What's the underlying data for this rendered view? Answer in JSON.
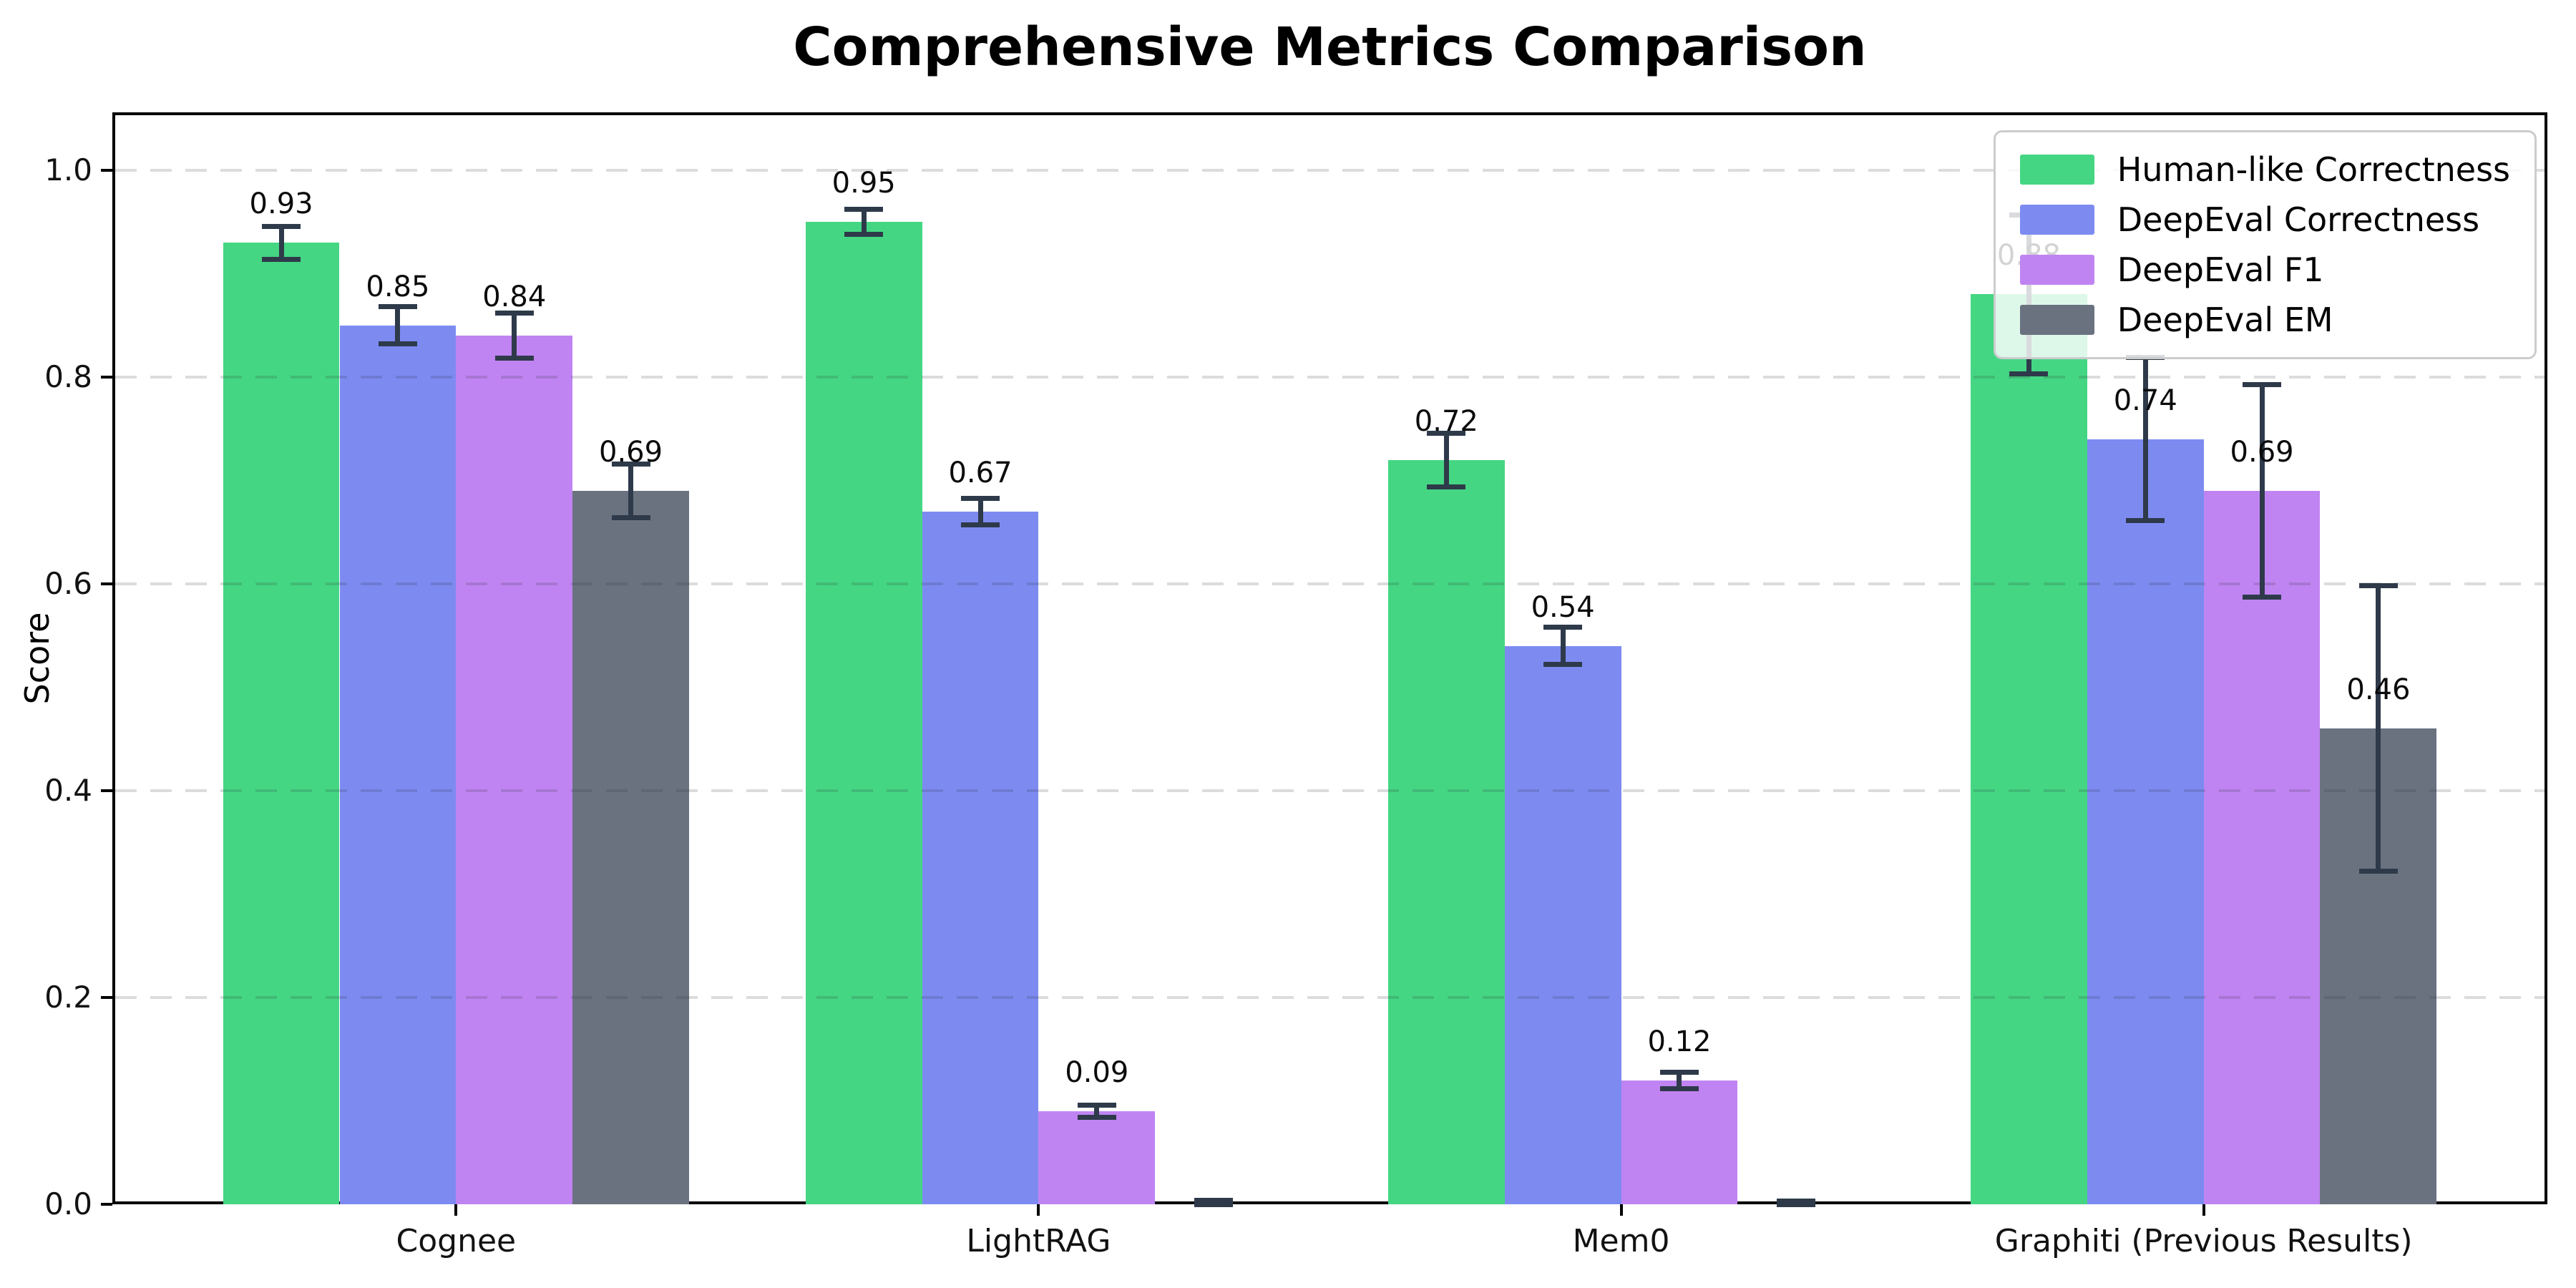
{
  "title": "Comprehensive Metrics Comparison",
  "axes": {
    "ylabel": "Score",
    "ytick_labels": [
      "0.0",
      "0.2",
      "0.4",
      "0.6",
      "0.8",
      "1.0"
    ],
    "ytick_values": [
      0.0,
      0.2,
      0.4,
      0.6,
      0.8,
      1.0
    ],
    "categories": [
      "Cognee",
      "LightRAG",
      "Mem0",
      "Graphiti (Previous Results)"
    ]
  },
  "legend_entries": [
    "Human-like Correctness",
    "DeepEval Correctness",
    "DeepEval F1",
    "DeepEval EM"
  ],
  "colors": {
    "human_like": "#45d683",
    "deepeval_correctness": "#7d8bf1",
    "deepeval_f1": "#c084f2",
    "deepeval_em": "#6a7280",
    "errorbar": "#2e3a4a",
    "spine": "#000000",
    "grid": "rgba(40,45,55,0.17)",
    "legend_border": "#cccccc"
  },
  "chart_data": {
    "type": "bar",
    "title": "Comprehensive Metrics Comparison",
    "xlabel": "",
    "ylabel": "Score",
    "ylim": [
      0,
      1.056
    ],
    "grid": "horizontal-dashed",
    "legend_position": "upper-right",
    "error_bars": true,
    "categories": [
      "Cognee",
      "LightRAG",
      "Mem0",
      "Graphiti (Previous Results)"
    ],
    "series": [
      {
        "name": "Human-like Correctness",
        "color": "#45d683",
        "values": [
          0.93,
          0.95,
          0.72,
          0.88
        ],
        "errors": [
          0.016,
          0.012,
          0.026,
          0.077
        ],
        "labels": [
          "0.93",
          "0.95",
          "0.72",
          "0.88"
        ]
      },
      {
        "name": "DeepEval Correctness",
        "color": "#7d8bf1",
        "values": [
          0.85,
          0.67,
          0.54,
          0.74
        ],
        "errors": [
          0.018,
          0.013,
          0.018,
          0.079
        ],
        "labels": [
          "0.85",
          "0.67",
          "0.54",
          "0.74"
        ]
      },
      {
        "name": "DeepEval F1",
        "color": "#c084f2",
        "values": [
          0.84,
          0.09,
          0.12,
          0.69
        ],
        "errors": [
          0.022,
          0.006,
          0.008,
          0.103
        ],
        "labels": [
          "0.84",
          "0.09",
          "0.12",
          "0.69"
        ]
      },
      {
        "name": "DeepEval EM",
        "color": "#6a7280",
        "values": [
          0.69,
          0.0,
          0.0,
          0.46
        ],
        "errors": [
          0.026,
          0.004,
          0.003,
          0.138
        ],
        "labels": [
          "0.69",
          "",
          "",
          "0.46"
        ]
      }
    ]
  }
}
